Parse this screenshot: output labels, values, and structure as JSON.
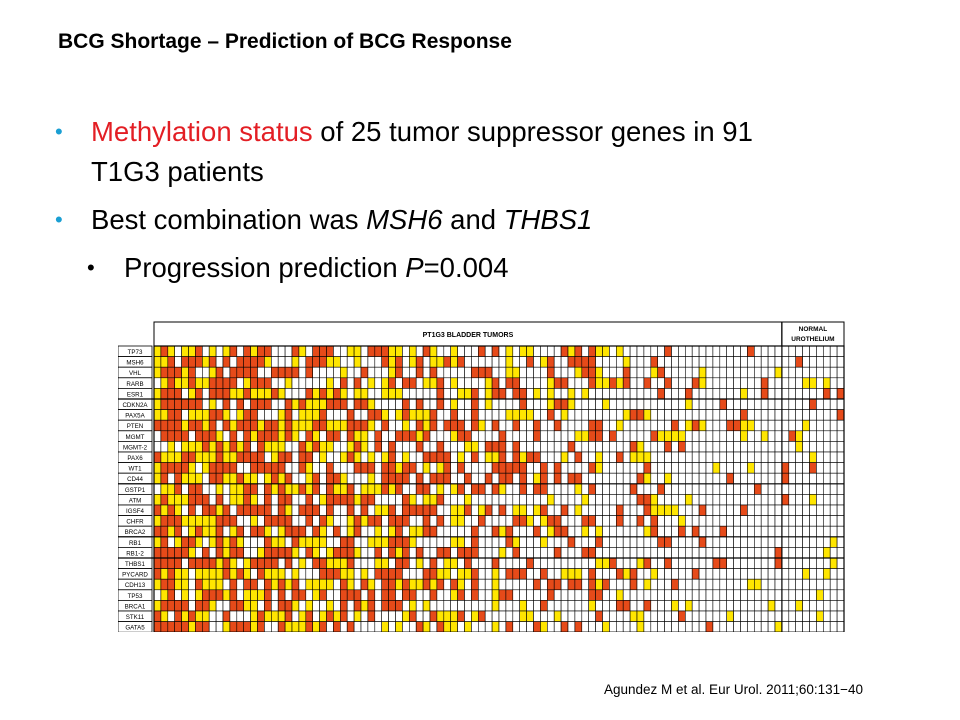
{
  "slide": {
    "title": "BCG Shortage – Prediction of BCG Response",
    "bullet1": {
      "highlight": "Methylation status",
      "rest_line1": " of 25 tumor suppressor genes in 91",
      "line2": "T1G3 patients"
    },
    "bullet2": {
      "prefix": "Best combination was ",
      "gene1": "MSH6",
      "middle": " and ",
      "gene2": "THBS1"
    },
    "sub_bullet": {
      "prefix": "Progression prediction ",
      "p_label": "P",
      "p_value": "=0.004"
    },
    "citation": "Agundez M et al. Eur Urol. 2011;60:131−40"
  },
  "figure": {
    "header_tumors": "PT1G3 BLADDER TUMORS",
    "header_normal_line1": "NORMAL",
    "header_normal_line2": "UROTHELIUM",
    "genes": [
      "TP73",
      "MSH6",
      "VHL",
      "RARB",
      "ESR1",
      "CDKN2A",
      "PAX5A",
      "PTEN",
      "MGMT",
      "MGMT-2",
      "PAX6",
      "WT1",
      "CD44",
      "GSTP1",
      "ATM",
      "IGSF4",
      "CHFR",
      "BRCA2",
      "RB1",
      "RB1-2",
      "THBS1",
      "PYCARD",
      "CDH13",
      "TP53",
      "BRCA1",
      "STK11",
      "GATA5"
    ],
    "tumor_columns": 91,
    "normal_columns": 9,
    "colors": {
      "methylated": "#e64a19",
      "partial": "#ffe600",
      "unmethylated": "#ffffff",
      "grid": "#000000"
    }
  }
}
